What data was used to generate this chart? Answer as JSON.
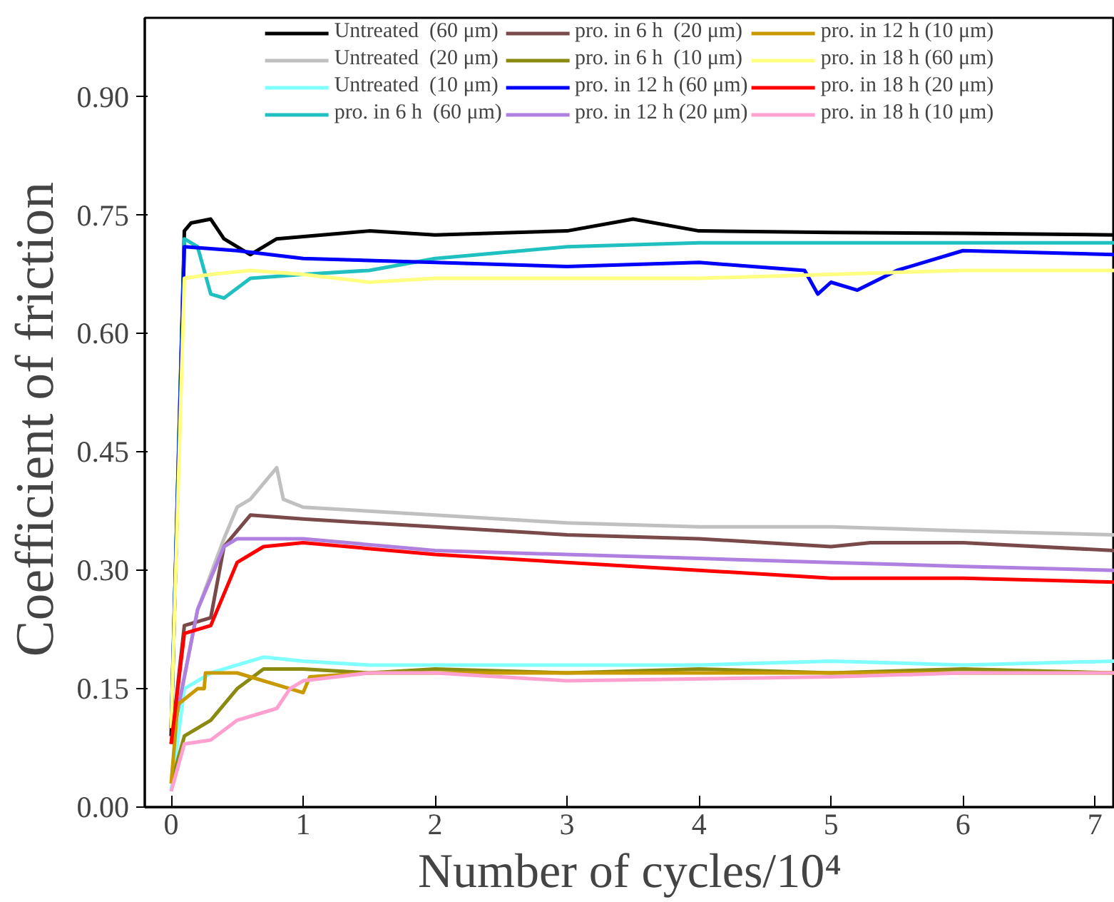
{
  "chart_data": {
    "type": "line",
    "xlabel": "Number of cycles/10⁴",
    "ylabel": "Coefficient of  friction",
    "xlim": [
      -0.2,
      7.15
    ],
    "ylim": [
      0,
      1.0
    ],
    "xticks": [
      0,
      1,
      2,
      3,
      4,
      5,
      6,
      7
    ],
    "yticks": [
      {
        "value": 0,
        "label": "0.00"
      },
      0.15,
      {
        "value": 0.3,
        "label": "0.30"
      },
      0.45,
      {
        "value": 0.6,
        "label": "0.60"
      },
      0.75,
      {
        "value": 0.9,
        "label": "0.90"
      }
    ],
    "grid": false,
    "legend": "top",
    "line_style": "solid",
    "marker": "none",
    "series": [
      {
        "name": "Untreated  (60 μm)",
        "color": "#000000",
        "x": [
          0,
          0.1,
          0.15,
          0.3,
          0.4,
          0.6,
          0.8,
          1.5,
          2,
          3,
          3.5,
          4,
          5,
          6,
          7.15
        ],
        "values": [
          0.09,
          0.73,
          0.74,
          0.745,
          0.72,
          0.7,
          0.72,
          0.73,
          0.725,
          0.73,
          0.745,
          0.73,
          0.728,
          0.727,
          0.725
        ]
      },
      {
        "name": "Untreated  (20 μm)",
        "color": "#c0c0c0",
        "x": [
          0,
          0.2,
          0.4,
          0.5,
          0.6,
          0.8,
          0.85,
          1,
          1.5,
          2,
          3,
          4,
          5,
          6,
          7.15
        ],
        "values": [
          0.08,
          0.25,
          0.34,
          0.38,
          0.39,
          0.43,
          0.39,
          0.38,
          0.375,
          0.37,
          0.36,
          0.355,
          0.355,
          0.35,
          0.345
        ]
      },
      {
        "name": "Untreated  (10 μm)",
        "color": "#80ffff",
        "x": [
          0,
          0.1,
          0.3,
          0.5,
          0.7,
          1,
          1.5,
          2,
          3,
          4,
          5,
          6,
          7.15
        ],
        "values": [
          0.02,
          0.15,
          0.17,
          0.18,
          0.19,
          0.185,
          0.18,
          0.18,
          0.18,
          0.18,
          0.185,
          0.18,
          0.185
        ]
      },
      {
        "name": "pro. in 6 h  (60 μm)",
        "color": "#20c0c0",
        "x": [
          0,
          0.1,
          0.2,
          0.3,
          0.4,
          0.6,
          1,
          1.5,
          2,
          3,
          4,
          5,
          7.15
        ],
        "values": [
          0.1,
          0.72,
          0.71,
          0.65,
          0.645,
          0.67,
          0.675,
          0.68,
          0.695,
          0.71,
          0.715,
          0.715,
          0.715
        ]
      },
      {
        "name": "pro. in 6 h  (20 μm)",
        "color": "#7a4a4a",
        "x": [
          0,
          0.1,
          0.3,
          0.4,
          0.6,
          1,
          2,
          3,
          4,
          5,
          5.3,
          6,
          7.15
        ],
        "values": [
          0.08,
          0.23,
          0.24,
          0.33,
          0.37,
          0.365,
          0.355,
          0.345,
          0.34,
          0.33,
          0.335,
          0.335,
          0.325
        ]
      },
      {
        "name": "pro. in 6 h  (10 μm)",
        "color": "#8a8a10",
        "x": [
          0,
          0.1,
          0.3,
          0.5,
          0.7,
          1,
          1.5,
          2,
          3,
          4,
          5,
          6,
          7.15
        ],
        "values": [
          0.03,
          0.09,
          0.11,
          0.15,
          0.175,
          0.175,
          0.17,
          0.175,
          0.17,
          0.175,
          0.17,
          0.175,
          0.17
        ]
      },
      {
        "name": "pro. in 12 h (60 μm)",
        "color": "#0000ff",
        "x": [
          0,
          0.1,
          0.5,
          1,
          2,
          3,
          4,
          4.8,
          4.9,
          5,
          5.2,
          5.5,
          6,
          7.15
        ],
        "values": [
          0.1,
          0.71,
          0.705,
          0.695,
          0.69,
          0.685,
          0.69,
          0.68,
          0.65,
          0.665,
          0.655,
          0.68,
          0.705,
          0.7
        ]
      },
      {
        "name": "pro. in 12 h (20 μm)",
        "color": "#b080e0",
        "x": [
          0,
          0.2,
          0.4,
          0.5,
          1,
          2,
          3,
          4,
          5,
          6,
          7.15
        ],
        "values": [
          0.08,
          0.25,
          0.33,
          0.34,
          0.34,
          0.325,
          0.32,
          0.315,
          0.31,
          0.305,
          0.3
        ]
      },
      {
        "name": "pro. in 12 h (10 μm)",
        "color": "#c89a00",
        "x": [
          0,
          0.05,
          0.2,
          0.25,
          0.26,
          0.5,
          0.8,
          1,
          1.05,
          1.5,
          3,
          5,
          7.15
        ],
        "values": [
          0.03,
          0.13,
          0.15,
          0.15,
          0.17,
          0.17,
          0.155,
          0.145,
          0.165,
          0.17,
          0.17,
          0.17,
          0.17
        ]
      },
      {
        "name": "pro. in 18 h (60 μm)",
        "color": "#ffff80",
        "x": [
          0,
          0.1,
          0.3,
          0.6,
          1,
          1.5,
          2,
          3,
          4,
          5,
          6,
          7.15
        ],
        "values": [
          0.1,
          0.67,
          0.675,
          0.68,
          0.675,
          0.665,
          0.67,
          0.67,
          0.67,
          0.675,
          0.68,
          0.68
        ]
      },
      {
        "name": "pro. in 18 h (20 μm)",
        "color": "#ff0000",
        "x": [
          0,
          0.1,
          0.3,
          0.5,
          0.7,
          1,
          2,
          3,
          4,
          5,
          6,
          7.15
        ],
        "values": [
          0.08,
          0.22,
          0.23,
          0.31,
          0.33,
          0.335,
          0.32,
          0.31,
          0.3,
          0.29,
          0.29,
          0.285
        ]
      },
      {
        "name": "pro. in 18 h (10 μm)",
        "color": "#ffa0d0",
        "x": [
          0,
          0.1,
          0.3,
          0.5,
          0.8,
          0.9,
          1,
          1.5,
          2,
          3,
          5,
          6,
          7.15
        ],
        "values": [
          0.02,
          0.08,
          0.085,
          0.11,
          0.125,
          0.15,
          0.16,
          0.17,
          0.17,
          0.16,
          0.165,
          0.17,
          0.17
        ]
      }
    ]
  }
}
